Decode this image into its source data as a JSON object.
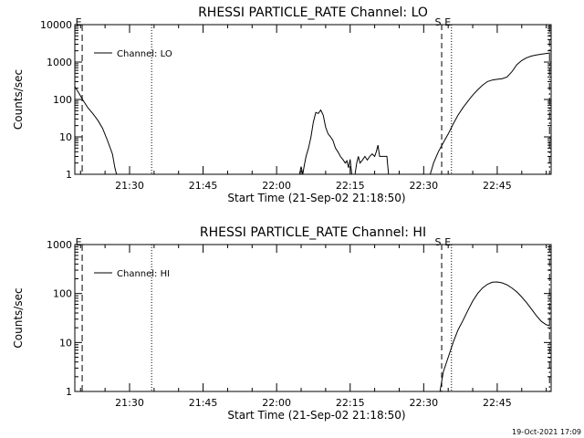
{
  "footer_stamp": "19-Oct-2021 17:09",
  "chart_data": [
    {
      "type": "line",
      "title": "RHESSI PARTICLE_RATE Channel: LO",
      "xlabel": "Start Time (21-Sep-02 21:18:50)",
      "ylabel": "Counts/sec",
      "yscale": "log",
      "ylim": [
        1,
        10000
      ],
      "yticks": [
        {
          "value": 1,
          "label": "1"
        },
        {
          "value": 10,
          "label": "10"
        },
        {
          "value": 100,
          "label": "100"
        },
        {
          "value": 1000,
          "label": "1000"
        },
        {
          "value": 10000,
          "label": "10000"
        }
      ],
      "xlim": [
        "21:18:50",
        "22:56:00"
      ],
      "xticks": [
        "21:30",
        "21:45",
        "22:00",
        "22:15",
        "22:30",
        "22:45"
      ],
      "grid": false,
      "legend_position": "top-left",
      "series": [
        {
          "name": "Channel: LO",
          "color": "#000000",
          "points": [
            [
              "21:18:50",
              220
            ],
            [
              "21:19:30",
              160
            ],
            [
              "21:20:30",
              95
            ],
            [
              "21:21:30",
              60
            ],
            [
              "21:22:30",
              42
            ],
            [
              "21:23:30",
              28
            ],
            [
              "21:24:30",
              17
            ],
            [
              "21:25:30",
              8
            ],
            [
              "21:26:30",
              3.5
            ],
            [
              "21:27:00",
              1.5
            ],
            [
              "21:27:20",
              1
            ],
            [
              "22:04:40",
              1
            ],
            [
              "22:05:00",
              1.6
            ],
            [
              "22:05:20",
              1
            ],
            [
              "22:05:40",
              1.8
            ],
            [
              "22:06:00",
              3
            ],
            [
              "22:06:30",
              5
            ],
            [
              "22:07:00",
              10
            ],
            [
              "22:07:30",
              25
            ],
            [
              "22:08:00",
              45
            ],
            [
              "22:08:30",
              42
            ],
            [
              "22:09:00",
              52
            ],
            [
              "22:09:30",
              38
            ],
            [
              "22:10:00",
              18
            ],
            [
              "22:10:30",
              12
            ],
            [
              "22:11:00",
              10
            ],
            [
              "22:11:30",
              8
            ],
            [
              "22:12:00",
              5
            ],
            [
              "22:12:30",
              4
            ],
            [
              "22:13:00",
              3
            ],
            [
              "22:13:30",
              2.5
            ],
            [
              "22:14:00",
              2
            ],
            [
              "22:14:20",
              2.3
            ],
            [
              "22:14:40",
              1.5
            ],
            [
              "22:15:00",
              2.5
            ],
            [
              "22:15:20",
              1
            ],
            [
              "22:16:00",
              1
            ],
            [
              "22:16:20",
              2
            ],
            [
              "22:16:40",
              3
            ],
            [
              "22:17:00",
              2
            ],
            [
              "22:17:30",
              2.4
            ],
            [
              "22:18:00",
              3
            ],
            [
              "22:18:30",
              2.4
            ],
            [
              "22:19:00",
              3
            ],
            [
              "22:19:30",
              3.5
            ],
            [
              "22:20:00",
              3
            ],
            [
              "22:20:20",
              4
            ],
            [
              "22:20:40",
              6
            ],
            [
              "22:21:00",
              3
            ],
            [
              "22:21:20",
              3
            ],
            [
              "22:21:40",
              3
            ],
            [
              "22:22:00",
              3
            ],
            [
              "22:22:30",
              3
            ],
            [
              "22:22:50",
              1
            ],
            [
              "22:31:20",
              1
            ],
            [
              "22:32:00",
              2
            ],
            [
              "22:33:00",
              4
            ],
            [
              "22:34:00",
              7
            ],
            [
              "22:35:00",
              12
            ],
            [
              "22:36:00",
              22
            ],
            [
              "22:37:00",
              38
            ],
            [
              "22:38:00",
              60
            ],
            [
              "22:39:00",
              90
            ],
            [
              "22:40:00",
              130
            ],
            [
              "22:41:00",
              180
            ],
            [
              "22:42:00",
              240
            ],
            [
              "22:43:00",
              300
            ],
            [
              "22:44:00",
              330
            ],
            [
              "22:45:00",
              345
            ],
            [
              "22:46:00",
              360
            ],
            [
              "22:47:00",
              400
            ],
            [
              "22:48:00",
              550
            ],
            [
              "22:49:00",
              850
            ],
            [
              "22:50:00",
              1100
            ],
            [
              "22:51:00",
              1300
            ],
            [
              "22:52:00",
              1450
            ],
            [
              "22:53:00",
              1550
            ],
            [
              "22:54:00",
              1620
            ],
            [
              "22:55:00",
              1700
            ],
            [
              "22:55:50",
              1750
            ]
          ]
        }
      ],
      "markers": [
        {
          "label": "E",
          "time": "21:20:20",
          "style": "long-dash"
        },
        {
          "label": "",
          "time": "21:34:30",
          "style": "dotted"
        },
        {
          "label": "S",
          "time": "22:33:40",
          "style": "dashed"
        },
        {
          "label": "E",
          "time": "22:35:40",
          "style": "dotted"
        },
        {
          "label": "",
          "time": "22:55:40",
          "style": "dash-dot"
        }
      ]
    },
    {
      "type": "line",
      "title": "RHESSI PARTICLE_RATE Channel: HI",
      "xlabel": "Start Time (21-Sep-02 21:18:50)",
      "ylabel": "Counts/sec",
      "yscale": "log",
      "ylim": [
        1,
        1000
      ],
      "yticks": [
        {
          "value": 1,
          "label": "1"
        },
        {
          "value": 10,
          "label": "10"
        },
        {
          "value": 100,
          "label": "100"
        },
        {
          "value": 1000,
          "label": "1000"
        }
      ],
      "xlim": [
        "21:18:50",
        "22:56:00"
      ],
      "xticks": [
        "21:30",
        "21:45",
        "22:00",
        "22:15",
        "22:30",
        "22:45"
      ],
      "grid": false,
      "legend_position": "top-left",
      "series": [
        {
          "name": "Channel: HI",
          "color": "#000000",
          "points": [
            [
              "22:33:20",
              1
            ],
            [
              "22:34:00",
              2.5
            ],
            [
              "22:35:00",
              5
            ],
            [
              "22:36:00",
              10
            ],
            [
              "22:37:00",
              18
            ],
            [
              "22:38:00",
              28
            ],
            [
              "22:39:00",
              45
            ],
            [
              "22:40:00",
              70
            ],
            [
              "22:41:00",
              100
            ],
            [
              "22:42:00",
              130
            ],
            [
              "22:43:00",
              155
            ],
            [
              "22:44:00",
              170
            ],
            [
              "22:45:00",
              172
            ],
            [
              "22:46:00",
              165
            ],
            [
              "22:47:00",
              150
            ],
            [
              "22:48:00",
              130
            ],
            [
              "22:49:00",
              108
            ],
            [
              "22:50:00",
              85
            ],
            [
              "22:51:00",
              65
            ],
            [
              "22:52:00",
              48
            ],
            [
              "22:53:00",
              35
            ],
            [
              "22:54:00",
              27
            ],
            [
              "22:55:00",
              23
            ],
            [
              "22:55:50",
              22
            ]
          ]
        }
      ],
      "markers": [
        {
          "label": "E",
          "time": "21:20:20",
          "style": "long-dash"
        },
        {
          "label": "",
          "time": "21:34:30",
          "style": "dotted"
        },
        {
          "label": "S",
          "time": "22:33:40",
          "style": "dashed"
        },
        {
          "label": "E",
          "time": "22:35:40",
          "style": "dotted"
        },
        {
          "label": "",
          "time": "22:55:40",
          "style": "dash-dot"
        }
      ]
    }
  ]
}
